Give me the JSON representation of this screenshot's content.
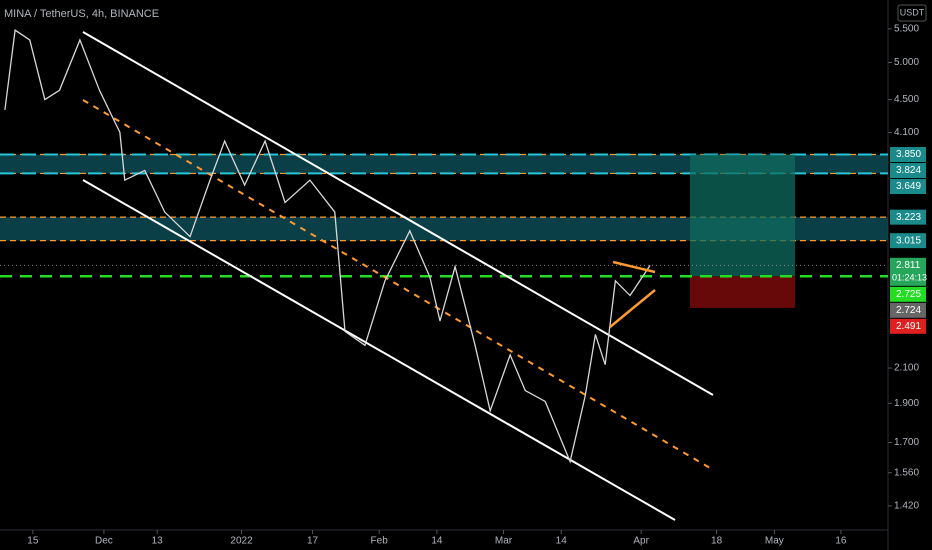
{
  "chart_data": {
    "type": "line",
    "title": "MINA / TetherUS, 4h, BINANCE",
    "currency": "USDT",
    "log_scale": true,
    "color": "#d8d8d8",
    "x": [
      -6.3,
      -4,
      -0.7,
      2.7,
      6,
      10.6,
      15,
      19.6,
      20.7,
      25.2,
      29.7,
      35.4,
      39.9,
      43.2,
      47.7,
      52.3,
      56.8,
      62.4,
      68,
      70.3,
      74.8,
      79.3,
      84.9,
      89.4,
      91.7,
      95.1,
      99.6,
      103,
      107.5,
      110.9,
      115.4,
      121,
      124.4,
      126.7,
      128.9,
      131.2,
      134.5,
      139
    ],
    "values": [
      4.37,
      5.48,
      5.33,
      4.5,
      4.62,
      5.33,
      4.62,
      4.1,
      3.58,
      3.68,
      3.27,
      3.05,
      3.58,
      4.0,
      3.53,
      4.0,
      3.36,
      3.58,
      3.27,
      2.33,
      2.24,
      2.69,
      3.1,
      2.72,
      2.4,
      2.8,
      2.24,
      1.86,
      2.18,
      1.97,
      1.91,
      1.61,
      1.94,
      2.31,
      2.12,
      2.69,
      2.58,
      2.81
    ],
    "xlim": [
      -7.4,
      192.6
    ],
    "xticks": [
      {
        "value": 0,
        "label": "15"
      },
      {
        "value": 16,
        "label": "Dec"
      },
      {
        "value": 28,
        "label": "13"
      },
      {
        "value": 47,
        "label": "2022"
      },
      {
        "value": 63,
        "label": "17"
      },
      {
        "value": 78,
        "label": "Feb"
      },
      {
        "value": 91,
        "label": "14"
      },
      {
        "value": 106,
        "label": "Mar"
      },
      {
        "value": 119,
        "label": "14"
      },
      {
        "value": 137,
        "label": "Apr"
      },
      {
        "value": 154,
        "label": "18"
      },
      {
        "value": 167,
        "label": "May"
      },
      {
        "value": 182,
        "label": "16"
      }
    ],
    "ylim": [
      1.326,
      5.97
    ],
    "yticks": [
      {
        "value": 5.5,
        "label": "5.500"
      },
      {
        "value": 5,
        "label": "5.000"
      },
      {
        "value": 4.5,
        "label": "4.500"
      },
      {
        "value": 4.1,
        "label": "4.100"
      },
      {
        "value": 2.1,
        "label": "2.100"
      },
      {
        "value": 1.9,
        "label": "1.900"
      },
      {
        "value": 1.7,
        "label": "1.700"
      },
      {
        "value": 1.56,
        "label": "1.560"
      },
      {
        "value": 1.42,
        "label": "1.420"
      }
    ],
    "price_labels": [
      {
        "value": 3.85,
        "label": "3.850",
        "color": "#1a8a8a"
      },
      {
        "value": 3.824,
        "label": "3.824",
        "color": "#1a8a8a"
      },
      {
        "value": 3.649,
        "label": "3.649",
        "color": "#1a8a8a"
      },
      {
        "value": 3.223,
        "label": "3.223",
        "color": "#1a8a8a"
      },
      {
        "value": 3.015,
        "label": "3.015",
        "color": "#1a8a8a"
      },
      {
        "value": 2.811,
        "label": "2.811",
        "color": "#26a65b",
        "countdown": "01:24:13"
      },
      {
        "value": 2.725,
        "label": "2.725",
        "color": "#22dd22"
      },
      {
        "value": 2.724,
        "label": "2.724",
        "color": "#666666"
      },
      {
        "value": 2.491,
        "label": "2.491",
        "color": "#e02020"
      }
    ]
  }
}
